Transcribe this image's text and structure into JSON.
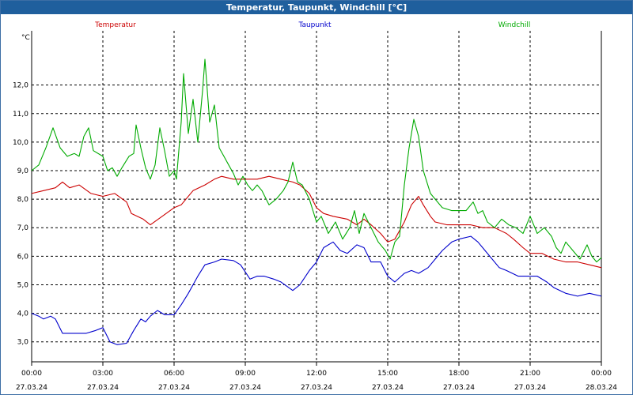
{
  "window": {
    "title": "Temperatur, Taupunkt, Windchill [°C]"
  },
  "chart_data": {
    "type": "line",
    "title": "Temperatur, Taupunkt, Windchill [°C]",
    "ylabel": "°C",
    "ylim": [
      2.3,
      13.9
    ],
    "y_ticks": [
      "3,0",
      "4,0",
      "5,0",
      "6,0",
      "7,0",
      "8,0",
      "9,0",
      "10,0",
      "11,0",
      "12,0"
    ],
    "y_tick_values": [
      3,
      4,
      5,
      6,
      7,
      8,
      9,
      10,
      11,
      12
    ],
    "xlim": [
      0,
      24
    ],
    "x_tick_values": [
      0,
      3,
      6,
      9,
      12,
      15,
      18,
      21,
      24
    ],
    "x_ticks": [
      {
        "time": "00:00",
        "date": "27.03.24"
      },
      {
        "time": "03:00",
        "date": "27.03.24"
      },
      {
        "time": "06:00",
        "date": "27.03.24"
      },
      {
        "time": "09:00",
        "date": "27.03.24"
      },
      {
        "time": "12:00",
        "date": "27.03.24"
      },
      {
        "time": "15:00",
        "date": "27.03.24"
      },
      {
        "time": "18:00",
        "date": "27.03.24"
      },
      {
        "time": "21:00",
        "date": "27.03.24"
      },
      {
        "time": "00:00",
        "date": "28.03.24"
      }
    ],
    "grid": true,
    "series": [
      {
        "name": "Temperatur",
        "color": "#cc0000",
        "points": [
          [
            0,
            8.2
          ],
          [
            0.5,
            8.3
          ],
          [
            1,
            8.4
          ],
          [
            1.3,
            8.6
          ],
          [
            1.6,
            8.4
          ],
          [
            2,
            8.5
          ],
          [
            2.5,
            8.2
          ],
          [
            3,
            8.1
          ],
          [
            3.5,
            8.2
          ],
          [
            4,
            7.9
          ],
          [
            4.2,
            7.5
          ],
          [
            4.7,
            7.3
          ],
          [
            5,
            7.1
          ],
          [
            5.5,
            7.4
          ],
          [
            6,
            7.7
          ],
          [
            6.3,
            7.8
          ],
          [
            6.8,
            8.3
          ],
          [
            7.3,
            8.5
          ],
          [
            7.7,
            8.7
          ],
          [
            8,
            8.8
          ],
          [
            8.5,
            8.7
          ],
          [
            9,
            8.7
          ],
          [
            9.5,
            8.7
          ],
          [
            10,
            8.8
          ],
          [
            10.5,
            8.7
          ],
          [
            11,
            8.6
          ],
          [
            11.3,
            8.5
          ],
          [
            11.7,
            8.2
          ],
          [
            12,
            7.7
          ],
          [
            12.3,
            7.5
          ],
          [
            12.7,
            7.4
          ],
          [
            13.3,
            7.3
          ],
          [
            13.7,
            7.1
          ],
          [
            14,
            7.3
          ],
          [
            14.3,
            7.1
          ],
          [
            14.7,
            6.8
          ],
          [
            15,
            6.5
          ],
          [
            15.3,
            6.6
          ],
          [
            15.7,
            7.2
          ],
          [
            16,
            7.8
          ],
          [
            16.3,
            8.1
          ],
          [
            16.5,
            7.8
          ],
          [
            16.8,
            7.4
          ],
          [
            17,
            7.2
          ],
          [
            17.5,
            7.1
          ],
          [
            18,
            7.1
          ],
          [
            18.5,
            7.1
          ],
          [
            19,
            7.0
          ],
          [
            19.5,
            7.0
          ],
          [
            20,
            6.8
          ],
          [
            20.3,
            6.6
          ],
          [
            20.7,
            6.3
          ],
          [
            21,
            6.1
          ],
          [
            21.5,
            6.1
          ],
          [
            22,
            5.9
          ],
          [
            22.5,
            5.8
          ],
          [
            23,
            5.8
          ],
          [
            23.5,
            5.7
          ],
          [
            24,
            5.6
          ]
        ]
      },
      {
        "name": "Taupunkt",
        "color": "#0000cc",
        "points": [
          [
            0,
            4.0
          ],
          [
            0.3,
            3.9
          ],
          [
            0.5,
            3.8
          ],
          [
            0.8,
            3.9
          ],
          [
            1,
            3.8
          ],
          [
            1.3,
            3.3
          ],
          [
            1.7,
            3.3
          ],
          [
            2,
            3.3
          ],
          [
            2.3,
            3.3
          ],
          [
            2.7,
            3.4
          ],
          [
            3,
            3.5
          ],
          [
            3.3,
            3.0
          ],
          [
            3.6,
            2.9
          ],
          [
            4,
            2.95
          ],
          [
            4.3,
            3.4
          ],
          [
            4.6,
            3.8
          ],
          [
            4.8,
            3.7
          ],
          [
            5,
            3.9
          ],
          [
            5.3,
            4.1
          ],
          [
            5.6,
            3.95
          ],
          [
            6,
            3.95
          ],
          [
            6.3,
            4.3
          ],
          [
            6.6,
            4.7
          ],
          [
            7,
            5.3
          ],
          [
            7.3,
            5.7
          ],
          [
            7.7,
            5.8
          ],
          [
            8,
            5.9
          ],
          [
            8.5,
            5.85
          ],
          [
            8.8,
            5.7
          ],
          [
            9.2,
            5.2
          ],
          [
            9.5,
            5.3
          ],
          [
            9.8,
            5.3
          ],
          [
            10.2,
            5.2
          ],
          [
            10.5,
            5.1
          ],
          [
            11,
            4.8
          ],
          [
            11.3,
            5.0
          ],
          [
            11.7,
            5.5
          ],
          [
            12,
            5.8
          ],
          [
            12.3,
            6.3
          ],
          [
            12.7,
            6.5
          ],
          [
            13,
            6.2
          ],
          [
            13.3,
            6.1
          ],
          [
            13.7,
            6.4
          ],
          [
            14,
            6.3
          ],
          [
            14.3,
            5.8
          ],
          [
            14.7,
            5.8
          ],
          [
            15,
            5.3
          ],
          [
            15.3,
            5.1
          ],
          [
            15.7,
            5.4
          ],
          [
            16,
            5.5
          ],
          [
            16.3,
            5.4
          ],
          [
            16.7,
            5.6
          ],
          [
            17,
            5.9
          ],
          [
            17.3,
            6.2
          ],
          [
            17.7,
            6.5
          ],
          [
            18,
            6.6
          ],
          [
            18.5,
            6.7
          ],
          [
            18.8,
            6.5
          ],
          [
            19,
            6.3
          ],
          [
            19.3,
            6.0
          ],
          [
            19.7,
            5.6
          ],
          [
            20,
            5.5
          ],
          [
            20.5,
            5.3
          ],
          [
            21,
            5.3
          ],
          [
            21.3,
            5.3
          ],
          [
            21.7,
            5.1
          ],
          [
            22,
            4.9
          ],
          [
            22.5,
            4.7
          ],
          [
            23,
            4.6
          ],
          [
            23.5,
            4.7
          ],
          [
            24,
            4.6
          ]
        ]
      },
      {
        "name": "Windchill",
        "color": "#00aa00",
        "points": [
          [
            0,
            9.0
          ],
          [
            0.3,
            9.2
          ],
          [
            0.6,
            9.8
          ],
          [
            0.9,
            10.5
          ],
          [
            1.2,
            9.8
          ],
          [
            1.5,
            9.5
          ],
          [
            1.8,
            9.6
          ],
          [
            2,
            9.5
          ],
          [
            2.2,
            10.2
          ],
          [
            2.4,
            10.5
          ],
          [
            2.6,
            9.7
          ],
          [
            3,
            9.5
          ],
          [
            3.2,
            9.0
          ],
          [
            3.4,
            9.1
          ],
          [
            3.6,
            8.8
          ],
          [
            3.8,
            9.1
          ],
          [
            4.1,
            9.5
          ],
          [
            4.3,
            9.6
          ],
          [
            4.4,
            10.6
          ],
          [
            4.6,
            9.8
          ],
          [
            4.8,
            9.1
          ],
          [
            5,
            8.7
          ],
          [
            5.2,
            9.2
          ],
          [
            5.4,
            10.5
          ],
          [
            5.6,
            9.7
          ],
          [
            5.8,
            8.8
          ],
          [
            6,
            9.0
          ],
          [
            6.1,
            8.7
          ],
          [
            6.3,
            10.7
          ],
          [
            6.4,
            12.4
          ],
          [
            6.6,
            10.3
          ],
          [
            6.8,
            11.5
          ],
          [
            7,
            10.0
          ],
          [
            7.2,
            11.8
          ],
          [
            7.3,
            12.9
          ],
          [
            7.5,
            10.7
          ],
          [
            7.7,
            11.3
          ],
          [
            7.9,
            9.8
          ],
          [
            8.1,
            9.5
          ],
          [
            8.3,
            9.2
          ],
          [
            8.5,
            8.9
          ],
          [
            8.7,
            8.5
          ],
          [
            8.9,
            8.8
          ],
          [
            9.1,
            8.5
          ],
          [
            9.3,
            8.3
          ],
          [
            9.5,
            8.5
          ],
          [
            9.7,
            8.3
          ],
          [
            10,
            7.8
          ],
          [
            10.3,
            8.0
          ],
          [
            10.6,
            8.3
          ],
          [
            10.8,
            8.6
          ],
          [
            11,
            9.3
          ],
          [
            11.2,
            8.6
          ],
          [
            11.4,
            8.5
          ],
          [
            11.7,
            8.0
          ],
          [
            12,
            7.2
          ],
          [
            12.2,
            7.4
          ],
          [
            12.5,
            6.8
          ],
          [
            12.8,
            7.2
          ],
          [
            13.1,
            6.6
          ],
          [
            13.4,
            7.0
          ],
          [
            13.6,
            7.6
          ],
          [
            13.8,
            6.8
          ],
          [
            14,
            7.5
          ],
          [
            14.3,
            7.0
          ],
          [
            14.6,
            6.5
          ],
          [
            14.9,
            6.2
          ],
          [
            15.1,
            5.9
          ],
          [
            15.3,
            6.5
          ],
          [
            15.5,
            6.7
          ],
          [
            15.7,
            8.5
          ],
          [
            15.9,
            9.8
          ],
          [
            16.1,
            10.8
          ],
          [
            16.3,
            10.2
          ],
          [
            16.5,
            9.0
          ],
          [
            16.8,
            8.2
          ],
          [
            17,
            8.0
          ],
          [
            17.3,
            7.7
          ],
          [
            17.7,
            7.6
          ],
          [
            18,
            7.6
          ],
          [
            18.3,
            7.6
          ],
          [
            18.6,
            7.9
          ],
          [
            18.8,
            7.5
          ],
          [
            19,
            7.6
          ],
          [
            19.2,
            7.2
          ],
          [
            19.5,
            7.0
          ],
          [
            19.8,
            7.3
          ],
          [
            20.1,
            7.1
          ],
          [
            20.4,
            7.0
          ],
          [
            20.7,
            6.8
          ],
          [
            21,
            7.4
          ],
          [
            21.3,
            6.8
          ],
          [
            21.6,
            7.0
          ],
          [
            21.9,
            6.7
          ],
          [
            22.1,
            6.3
          ],
          [
            22.3,
            6.1
          ],
          [
            22.5,
            6.5
          ],
          [
            22.8,
            6.2
          ],
          [
            23.1,
            5.9
          ],
          [
            23.4,
            6.4
          ],
          [
            23.6,
            6.0
          ],
          [
            23.8,
            5.8
          ],
          [
            24,
            5.95
          ]
        ]
      }
    ]
  }
}
